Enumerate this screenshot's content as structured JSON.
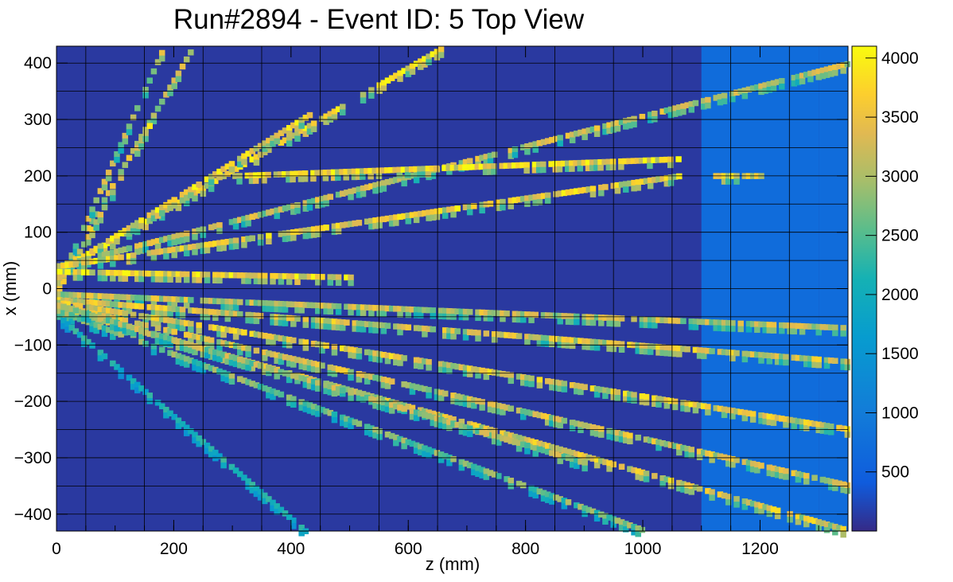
{
  "chart_data": {
    "type": "heatmap",
    "title": "Run#2894 - Event ID: 5 Top View",
    "xlabel": "z (mm)",
    "ylabel": "x (mm)",
    "xlim": [
      0,
      1350
    ],
    "ylim": [
      -430,
      430
    ],
    "xticks": [
      "0",
      "200",
      "400",
      "600",
      "800",
      "1000",
      "1200"
    ],
    "yticks": [
      "400",
      "300",
      "200",
      "100",
      "0",
      "−100",
      "−200",
      "−300",
      "−400"
    ],
    "colorbar": {
      "range": [
        0,
        4100
      ],
      "ticks": [
        "4000",
        "3500",
        "3000",
        "2500",
        "2000",
        "1500",
        "1000",
        "500"
      ]
    },
    "background_value": 120,
    "grid": true,
    "bands": [
      {
        "z": [
          1100,
          1300
        ],
        "x": [
          -430,
          430
        ],
        "value": 700
      },
      {
        "z": [
          1300,
          1350
        ],
        "x": [
          -430,
          430
        ],
        "value": 700
      }
    ],
    "tracks": [
      {
        "z": [
          0,
          230
        ],
        "x": [
          20,
          430
        ],
        "value": 3400
      },
      {
        "z": [
          0,
          180
        ],
        "x": [
          10,
          430
        ],
        "value": 3200
      },
      {
        "z": [
          0,
          160
        ],
        "x": [
          0,
          300
        ],
        "value": 3600
      },
      {
        "z": [
          0,
          660
        ],
        "x": [
          30,
          430
        ],
        "value": 3800
      },
      {
        "z": [
          0,
          430
        ],
        "x": [
          30,
          310
        ],
        "value": 3900
      },
      {
        "z": [
          0,
          1350
        ],
        "x": [
          40,
          400
        ],
        "value": 3300
      },
      {
        "z": [
          300,
          1060
        ],
        "x": [
          200,
          230
        ],
        "value": 3900
      },
      {
        "z": [
          0,
          1060
        ],
        "x": [
          40,
          200
        ],
        "value": 3700
      },
      {
        "z": [
          1120,
          1200
        ],
        "x": [
          200,
          200
        ],
        "value": 3800
      },
      {
        "z": [
          0,
          500
        ],
        "x": [
          30,
          20
        ],
        "value": 3900
      },
      {
        "z": [
          0,
          1350
        ],
        "x": [
          -10,
          -70
        ],
        "value": 3300
      },
      {
        "z": [
          0,
          1350
        ],
        "x": [
          -20,
          -130
        ],
        "value": 3500
      },
      {
        "z": [
          0,
          1350
        ],
        "x": [
          -25,
          -250
        ],
        "value": 3600
      },
      {
        "z": [
          0,
          1350
        ],
        "x": [
          -30,
          -350
        ],
        "value": 3400
      },
      {
        "z": [
          0,
          1350
        ],
        "x": [
          -35,
          -430
        ],
        "value": 3500
      },
      {
        "z": [
          0,
          1000
        ],
        "x": [
          -40,
          -430
        ],
        "value": 2800
      },
      {
        "z": [
          0,
          420
        ],
        "x": [
          -50,
          -430
        ],
        "value": 2200
      },
      {
        "z": [
          0,
          900
        ],
        "x": [
          -30,
          -310
        ],
        "value": 3100
      }
    ]
  }
}
